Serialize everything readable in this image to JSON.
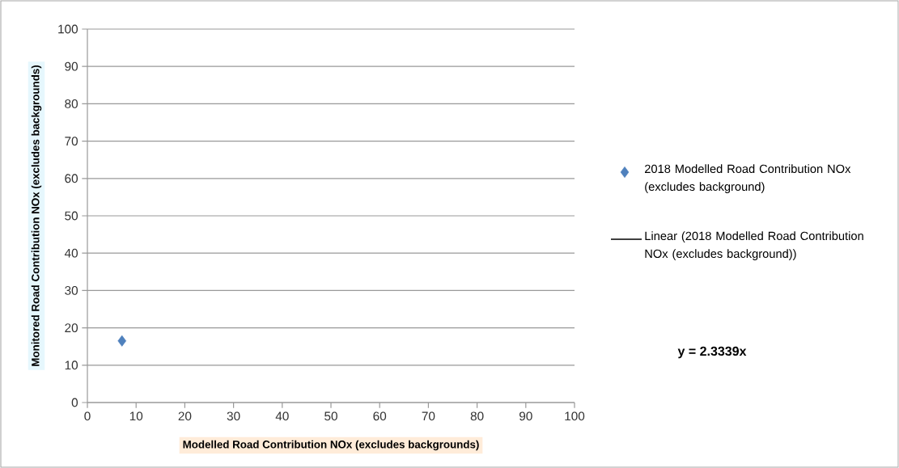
{
  "chart_data": {
    "type": "scatter",
    "xlabel": "Modelled Road Contribution NOx (excludes backgrounds)",
    "ylabel": "Monitored Road Contribution NOx (excludes backgrounds)",
    "series": [
      {
        "name": "2018 Modelled Road Contribution NOx (excludes background)",
        "color": "#4f81bd",
        "marker": "diamond",
        "x": [
          7.1
        ],
        "values": [
          16.5
        ]
      },
      {
        "name": "Linear (2018 Modelled Road Contribution NOx (excludes background))",
        "type": "line",
        "color": "#000000",
        "line_style": "solid"
      }
    ],
    "annotations": [
      "y = 2.3339x"
    ],
    "xlim": [
      0,
      100
    ],
    "ylim": [
      0,
      100
    ],
    "xticks": [
      0,
      10,
      20,
      30,
      40,
      50,
      60,
      70,
      80,
      90,
      100
    ],
    "yticks": [
      0,
      10,
      20,
      30,
      40,
      50,
      60,
      70,
      80,
      90,
      100
    ],
    "grid": "y",
    "legend": "right"
  }
}
